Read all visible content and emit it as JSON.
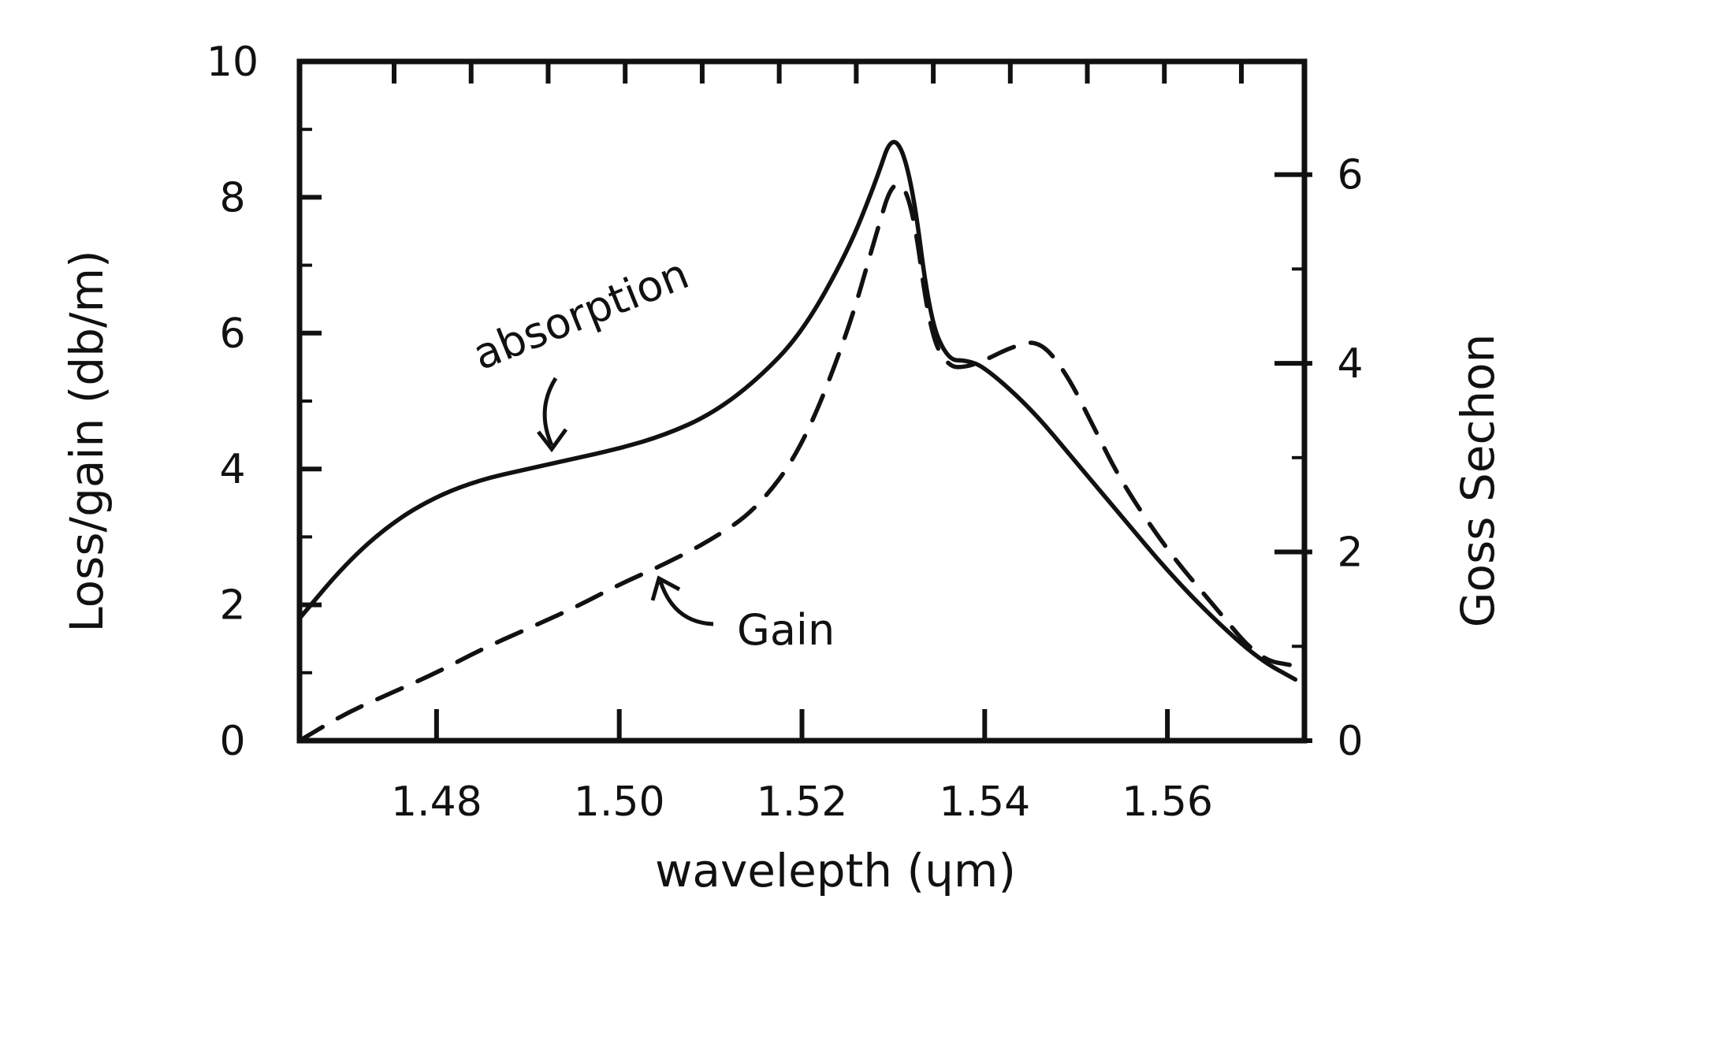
{
  "chart_data": {
    "type": "line",
    "xlabel": "wavelepth (ɥm)",
    "ylabel": "Loss/gain (db/m)",
    "y2label": "Goss Sechon",
    "xlim": [
      1.465,
      1.575
    ],
    "ylim": [
      0,
      10
    ],
    "y2lim": [
      0,
      7.2
    ],
    "x_ticks": [
      1.48,
      1.5,
      1.52,
      1.54,
      1.56
    ],
    "x_tick_labels": [
      "1.48",
      "1.50",
      "1.52",
      "1.54",
      "1.56"
    ],
    "y_ticks": [
      0,
      2,
      4,
      6,
      8,
      10
    ],
    "y_tick_labels": [
      "0",
      "2",
      "4",
      "6",
      "8",
      "10"
    ],
    "y2_ticks": [
      0,
      2,
      4,
      6
    ],
    "y2_tick_labels": [
      "0",
      "2",
      "4",
      "6"
    ],
    "grid": false,
    "series": [
      {
        "name": "absorption",
        "style": "solid",
        "color": "#111111",
        "x": [
          1.465,
          1.47,
          1.475,
          1.48,
          1.485,
          1.49,
          1.495,
          1.5,
          1.505,
          1.51,
          1.515,
          1.52,
          1.525,
          1.528,
          1.53,
          1.532,
          1.534,
          1.536,
          1.538,
          1.54,
          1.545,
          1.55,
          1.555,
          1.56,
          1.565,
          1.57,
          1.574
        ],
        "y": [
          1.8,
          2.6,
          3.2,
          3.6,
          3.85,
          4.0,
          4.15,
          4.3,
          4.5,
          4.8,
          5.3,
          6.0,
          7.2,
          8.2,
          9.0,
          8.3,
          6.2,
          5.6,
          5.6,
          5.5,
          4.9,
          4.1,
          3.3,
          2.5,
          1.8,
          1.2,
          0.9
        ]
      },
      {
        "name": "Gain",
        "style": "dashed",
        "color": "#111111",
        "x": [
          1.465,
          1.47,
          1.475,
          1.48,
          1.485,
          1.49,
          1.495,
          1.5,
          1.505,
          1.51,
          1.515,
          1.52,
          1.525,
          1.528,
          1.53,
          1.532,
          1.534,
          1.536,
          1.538,
          1.54,
          1.543,
          1.546,
          1.549,
          1.552,
          1.555,
          1.56,
          1.565,
          1.57,
          1.574
        ],
        "y": [
          0.0,
          0.4,
          0.7,
          1.0,
          1.35,
          1.65,
          1.95,
          2.3,
          2.6,
          2.95,
          3.4,
          4.3,
          6.0,
          7.4,
          8.3,
          8.0,
          6.0,
          5.5,
          5.5,
          5.6,
          5.8,
          5.9,
          5.4,
          4.6,
          3.8,
          2.8,
          2.0,
          1.2,
          1.1
        ]
      }
    ],
    "annotations": [
      {
        "text": "absorption",
        "points_to": "absorption"
      },
      {
        "text": "Gain",
        "points_to": "Gain"
      }
    ]
  }
}
